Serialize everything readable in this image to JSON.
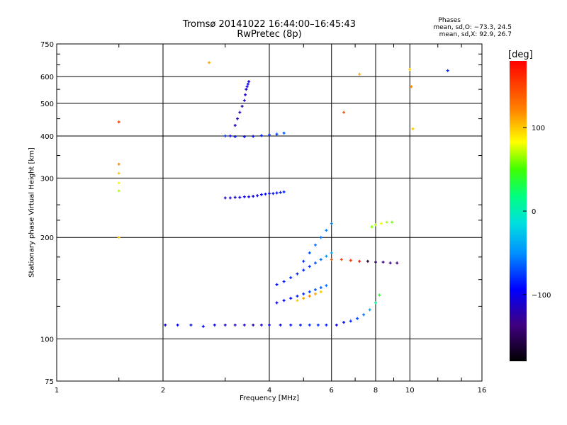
{
  "chart_data": {
    "type": "scatter",
    "title": "Tromsø 20141022 16:44:00–16:45:43",
    "subtitle": "RwPretec (8p)",
    "phases_header": "Phases",
    "phases_o": "mean, sd,O: −73.3, 24.5",
    "phases_x": "mean, sd,X: 92.9, 26.7",
    "xlabel": "Frequency [MHz]",
    "ylabel": "Stationary phase Virtual Height [km]",
    "x_scale": "log",
    "y_scale": "log",
    "xlim": [
      1,
      16
    ],
    "ylim": [
      75,
      750
    ],
    "x_ticks": [
      1,
      2,
      4,
      6,
      8,
      10,
      16
    ],
    "x_tick_labels": [
      "1",
      "2",
      "4",
      "6",
      "8",
      "10",
      "16"
    ],
    "y_ticks": [
      75,
      100,
      200,
      300,
      400,
      500,
      600,
      750
    ],
    "y_tick_labels": [
      "75",
      "100",
      "200",
      "300",
      "400",
      "500",
      "600",
      "750"
    ],
    "grid": true,
    "colorbar": {
      "label": "[deg]",
      "range": [
        -180,
        180
      ],
      "ticks": [
        100,
        0,
        -100
      ],
      "tick_labels": [
        "100",
        "0",
        "−100"
      ],
      "colormap": "rainbow"
    },
    "series": [
      {
        "x": [
          2.03,
          2.2,
          2.4,
          2.6,
          2.8,
          3.0,
          3.2,
          3.4,
          3.6,
          3.8,
          4.0,
          4.3,
          4.6,
          4.9,
          5.2,
          5.5,
          5.8
        ],
        "y": [
          110,
          110,
          110,
          109,
          110,
          110,
          110,
          110,
          110,
          110,
          110,
          110,
          110,
          110,
          110,
          110,
          110
        ],
        "phase": [
          -100,
          -95,
          -90,
          -95,
          -100,
          -105,
          -110,
          -115,
          -115,
          -110,
          -100,
          -95,
          -90,
          -85,
          -80,
          -80,
          -85
        ]
      },
      {
        "x": [
          6.2,
          6.5,
          6.8,
          7.1,
          7.4,
          7.7,
          8.0,
          8.2
        ],
        "y": [
          110,
          112,
          113,
          115,
          118,
          122,
          128,
          135
        ],
        "phase": [
          -100,
          -95,
          -80,
          -70,
          -60,
          -40,
          10,
          40
        ]
      },
      {
        "x": [
          3.0,
          3.1,
          3.2,
          3.3,
          3.4,
          3.5,
          3.6,
          3.7,
          3.8,
          3.9,
          4.0,
          4.1,
          4.2,
          4.3,
          4.4
        ],
        "y": [
          262,
          262,
          263,
          263,
          264,
          264,
          265,
          266,
          268,
          269,
          270,
          270,
          271,
          272,
          273
        ],
        "phase": [
          -110,
          -108,
          -106,
          -104,
          -102,
          -100,
          -98,
          -96,
          -94,
          -92,
          -92,
          -90,
          -90,
          -88,
          -86
        ]
      },
      {
        "x": [
          3.1,
          3.2,
          3.25,
          3.3,
          3.35,
          3.4,
          3.42,
          3.44,
          3.46,
          3.48,
          3.5
        ],
        "y": [
          400,
          430,
          450,
          470,
          490,
          510,
          530,
          550,
          560,
          570,
          580
        ],
        "phase": [
          -100,
          -110,
          -115,
          -120,
          -120,
          -115,
          -110,
          -110,
          -105,
          -100,
          -100
        ]
      },
      {
        "x": [
          3.0,
          3.2,
          3.4,
          3.6,
          3.8,
          4.0,
          4.2,
          4.4
        ],
        "y": [
          400,
          398,
          398,
          399,
          401,
          403,
          405,
          408
        ],
        "phase": [
          -80,
          -85,
          -90,
          -90,
          -85,
          -80,
          -75,
          -70
        ]
      },
      {
        "x": [
          4.2,
          4.4,
          4.6,
          4.8,
          5.0,
          5.2,
          5.4,
          5.6,
          5.8,
          6.0
        ],
        "y": [
          145,
          148,
          152,
          156,
          160,
          164,
          168,
          172,
          176,
          180
        ],
        "phase": [
          -90,
          -90,
          -85,
          -85,
          -80,
          -80,
          -70,
          -60,
          -50,
          -40
        ]
      },
      {
        "x": [
          4.2,
          4.4,
          4.6,
          4.8,
          5.0,
          5.2,
          5.4,
          5.6,
          5.8
        ],
        "y": [
          128,
          130,
          132,
          134,
          136,
          138,
          140,
          142,
          144
        ],
        "phase": [
          -100,
          -95,
          -90,
          -85,
          -80,
          -75,
          -70,
          -65,
          -60
        ]
      },
      {
        "x": [
          4.8,
          5.0,
          5.2,
          5.4,
          5.6
        ],
        "y": [
          130,
          132,
          134,
          136,
          138
        ],
        "phase": [
          100,
          110,
          120,
          110,
          100
        ]
      },
      {
        "x": [
          6.0,
          6.4,
          6.8,
          7.2,
          7.6,
          8.0,
          8.4,
          8.8,
          9.2
        ],
        "y": [
          172,
          172,
          171,
          170,
          170,
          169,
          169,
          168,
          168
        ],
        "phase": [
          140,
          150,
          160,
          170,
          -160,
          -150,
          -140,
          -140,
          -135
        ]
      },
      {
        "x": [
          5.0,
          5.2,
          5.4,
          5.6,
          5.8,
          6.0
        ],
        "y": [
          170,
          180,
          190,
          200,
          210,
          220
        ],
        "phase": [
          -80,
          -70,
          -60,
          -60,
          -55,
          -50
        ]
      },
      {
        "x": [
          7.8,
          8.0,
          8.3,
          8.6,
          8.9
        ],
        "y": [
          215,
          218,
          220,
          222,
          222
        ],
        "phase": [
          60,
          70,
          80,
          70,
          60
        ]
      },
      {
        "x": [
          1.5,
          1.5,
          1.5,
          1.5,
          1.5,
          1.5,
          2.7,
          7.2,
          6.5,
          10.0,
          10.1,
          10.2,
          12.8
        ],
        "y": [
          440,
          330,
          310,
          290,
          275,
          200,
          660,
          610,
          470,
          630,
          560,
          420,
          625
        ],
        "phase": [
          150,
          120,
          100,
          80,
          70,
          100,
          110,
          110,
          140,
          100,
          120,
          100,
          -80
        ]
      }
    ]
  }
}
